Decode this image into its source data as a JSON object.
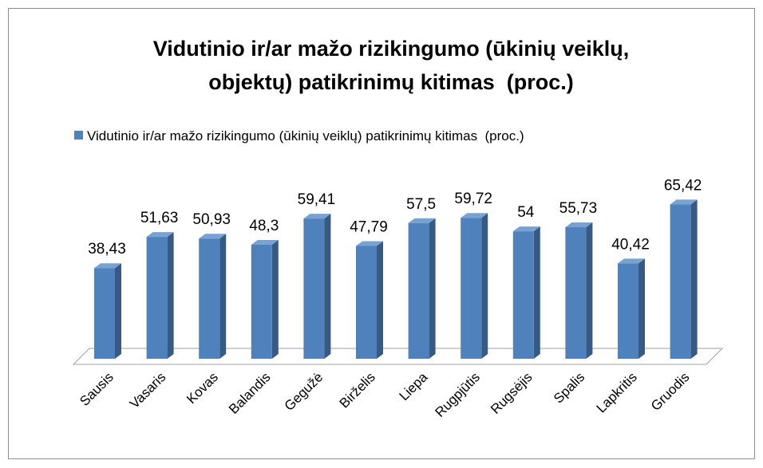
{
  "chart_data": {
    "type": "bar3d",
    "title": [
      "Vidutinio ir/ar mažo rizikingumo (ūkinių veiklų,",
      "objektų) patikrinimų kitimas  (proc.)"
    ],
    "categories": [
      "Sausis",
      "Vasaris",
      "Kovas",
      "Balandis",
      "Gegužė",
      "Birželis",
      "Liepa",
      "Rugpjūtis",
      "Rugsėjis",
      "Spalis",
      "Lapkritis",
      "Gruodis"
    ],
    "series": [
      {
        "name": "Vidutinio ir/ar mažo rizikingumo (ūkinių veiklų) patikrinimų kitimas  (proc.)",
        "color": "#4f81bd",
        "values": [
          38.43,
          51.63,
          50.93,
          48.3,
          59.41,
          47.79,
          57.5,
          59.72,
          54,
          55.73,
          40.42,
          65.42
        ],
        "value_labels": [
          "38,43",
          "51,63",
          "50,93",
          "48,3",
          "59,41",
          "47,79",
          "57,5",
          "59,72",
          "54",
          "55,73",
          "40,42",
          "65,42"
        ]
      }
    ],
    "legend": "top"
  }
}
